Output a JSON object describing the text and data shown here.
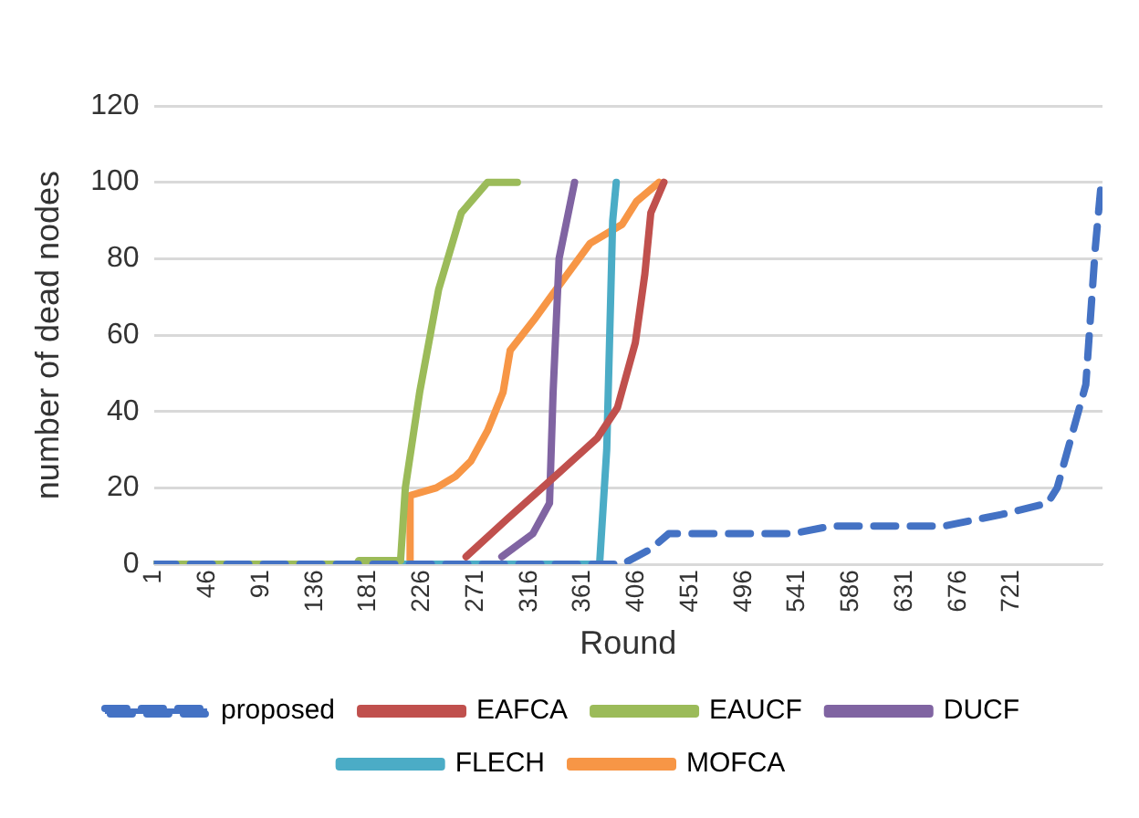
{
  "chart_data": {
    "type": "line",
    "xlabel": "Round",
    "ylabel": "number of dead nodes",
    "xlim": [
      1,
      797
    ],
    "xticks": [
      1,
      46,
      91,
      136,
      181,
      226,
      271,
      316,
      361,
      406,
      451,
      496,
      541,
      586,
      631,
      676,
      721
    ],
    "ylim": [
      0,
      120
    ],
    "yticks": [
      0,
      20,
      40,
      60,
      80,
      100,
      120
    ],
    "grid": "y",
    "legend": "bottom",
    "marker": "none",
    "series": [
      {
        "name": "proposed",
        "color": "#4472c4",
        "line_style": "dashed",
        "x": [
          1,
          394,
          418,
          433,
          537,
          569,
          664,
          712,
          751,
          759,
          783,
          791,
          796
        ],
        "values": [
          0,
          0,
          4,
          8,
          8,
          10,
          10,
          13,
          16,
          20,
          47,
          83,
          100
        ]
      },
      {
        "name": "EAFCA",
        "color": "#c0504d",
        "line_style": "solid",
        "x": [
          263,
          298,
          341,
          373,
          390,
          405,
          413,
          418,
          429
        ],
        "values": [
          2,
          12,
          24,
          33,
          41,
          58,
          76,
          92,
          100
        ]
      },
      {
        "name": "EAUCF",
        "color": "#9bbb59",
        "line_style": "solid",
        "x": [
          1,
          171,
          173,
          208,
          212,
          224,
          240,
          259,
          281,
          306
        ],
        "values": [
          0,
          0,
          1,
          1,
          20,
          45,
          72,
          92,
          100,
          100
        ]
      },
      {
        "name": "DUCF",
        "color": "#8064a2",
        "line_style": "solid",
        "x": [
          293,
          319,
          333,
          336,
          341,
          354
        ],
        "values": [
          2,
          8,
          16,
          45,
          80,
          100
        ]
      },
      {
        "name": "FLECH",
        "color": "#4bacc6",
        "line_style": "solid",
        "x": [
          1,
          375,
          381,
          386,
          389
        ],
        "values": [
          0,
          0,
          30,
          90,
          100
        ]
      },
      {
        "name": "MOFCA",
        "color": "#f79646",
        "line_style": "solid",
        "x": [
          1,
          215,
          216,
          238,
          254,
          267,
          281,
          294,
          300,
          310,
          320,
          334,
          367,
          394,
          406,
          425
        ],
        "values": [
          0,
          0,
          18,
          20,
          23,
          27,
          35,
          45,
          56,
          60,
          64,
          70,
          84,
          89,
          95,
          100
        ]
      }
    ]
  }
}
